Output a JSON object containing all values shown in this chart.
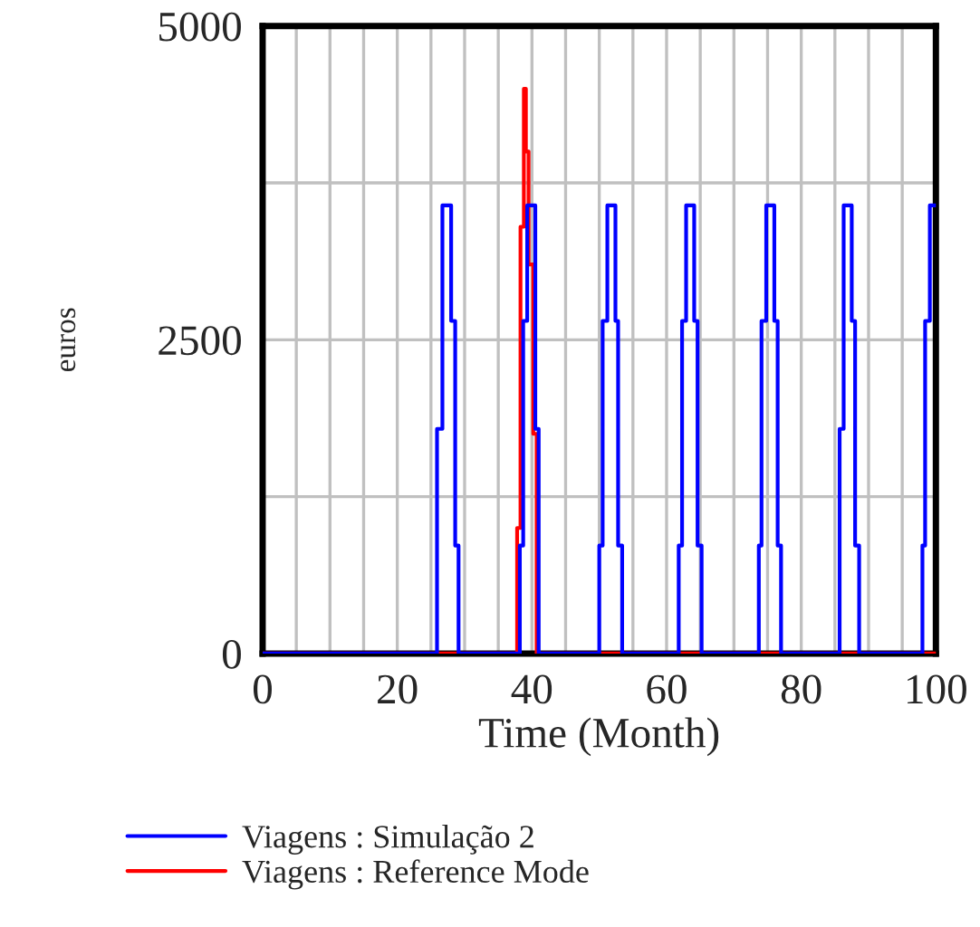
{
  "chart_data": {
    "type": "step",
    "xlabel": "Time (Month)",
    "ylabel": "euros",
    "xlim": [
      0,
      100
    ],
    "ylim": [
      0,
      5000
    ],
    "xticks": [
      0,
      {
        "value": 5,
        "label": null
      },
      {
        "value": 10,
        "label": null
      },
      {
        "value": 15,
        "label": null
      },
      20,
      {
        "value": 25,
        "label": null
      },
      {
        "value": 30,
        "label": null
      },
      {
        "value": 35,
        "label": null
      },
      40,
      {
        "value": 45,
        "label": null
      },
      {
        "value": 50,
        "label": null
      },
      {
        "value": 55,
        "label": null
      },
      60,
      {
        "value": 65,
        "label": null
      },
      {
        "value": 70,
        "label": null
      },
      {
        "value": 75,
        "label": null
      },
      80,
      {
        "value": 85,
        "label": null
      },
      {
        "value": 90,
        "label": null
      },
      {
        "value": 95,
        "label": null
      },
      100
    ],
    "yticks": [
      0,
      {
        "value": 1250,
        "label": null
      },
      2500,
      {
        "value": 3750,
        "label": null
      },
      5000
    ],
    "grid": true,
    "legend": "bottom",
    "series": [
      {
        "name": "Viagens : Simulação 2",
        "color": "#0000ff",
        "x": [
          0,
          25.9,
          26.7,
          28.0,
          28.6,
          29.1,
          38.2,
          38.7,
          39.3,
          40.5,
          41.0,
          50.0,
          50.5,
          51.2,
          52.4,
          52.8,
          53.4,
          61.8,
          62.3,
          62.9,
          64.1,
          64.6,
          65.2,
          73.7,
          74.1,
          74.8,
          76.0,
          76.5,
          77.0,
          85.7,
          86.3,
          87.5,
          88.0,
          88.6,
          98.0,
          98.4,
          99.1,
          100
        ],
        "values": [
          0,
          1790,
          3570,
          2650,
          860,
          0,
          860,
          2650,
          3570,
          1790,
          0,
          860,
          2650,
          3570,
          2650,
          860,
          0,
          860,
          2650,
          3570,
          2650,
          860,
          0,
          860,
          2650,
          3570,
          2650,
          860,
          0,
          1790,
          3570,
          2650,
          860,
          0,
          860,
          2650,
          3570,
          3570
        ]
      },
      {
        "name": "Viagens : Reference Mode",
        "color": "#ff0000",
        "x": [
          0,
          37.8,
          38.3,
          38.8,
          39.1,
          39.5,
          40.2,
          40.7,
          100
        ],
        "values": [
          0,
          1000,
          3400,
          4500,
          4000,
          3100,
          1750,
          0,
          0
        ]
      }
    ]
  }
}
